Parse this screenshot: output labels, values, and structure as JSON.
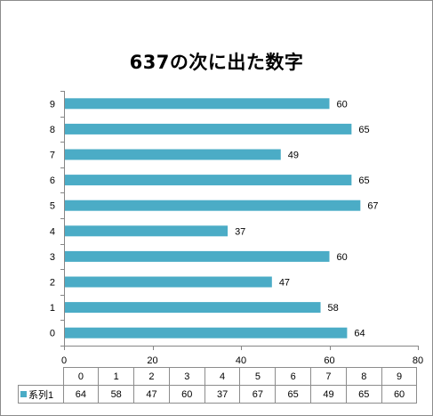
{
  "chart_data": {
    "type": "bar",
    "orientation": "horizontal",
    "title": "637の次に出た数字",
    "categories": [
      "0",
      "1",
      "2",
      "3",
      "4",
      "5",
      "6",
      "7",
      "8",
      "9"
    ],
    "series": [
      {
        "name": "系列1",
        "values": [
          64,
          58,
          47,
          60,
          37,
          67,
          65,
          49,
          65,
          60
        ],
        "color": "#4bacc6"
      }
    ],
    "xlim": [
      0,
      80
    ],
    "x_ticks": [
      "0",
      "20",
      "40",
      "60",
      "80"
    ],
    "grid": false,
    "data_labels": true,
    "data_table": true
  }
}
